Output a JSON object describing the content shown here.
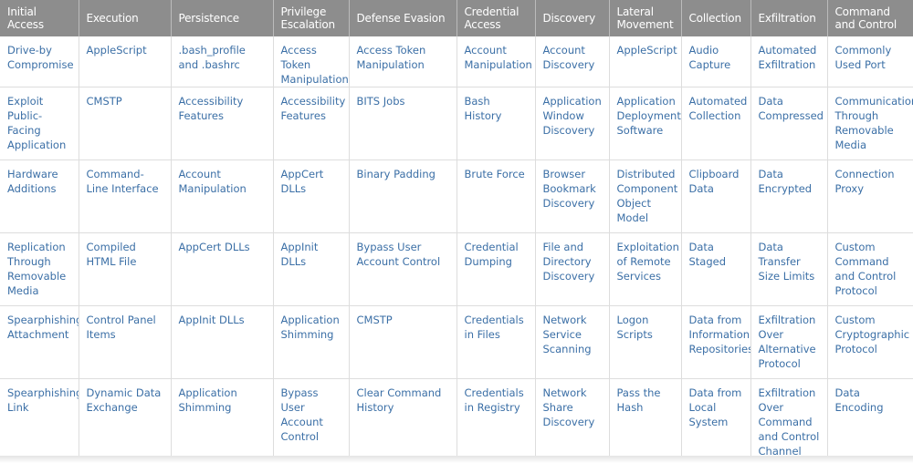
{
  "table": {
    "header": [
      "Initial Access",
      "Execution",
      "Persistence",
      "Privilege Escalation",
      "Defense Evasion",
      "Credential Access",
      "Discovery",
      "Lateral Movement",
      "Collection",
      "Exfiltration",
      "Command and Control"
    ],
    "rows": [
      [
        "Drive-by Compromise",
        "AppleScript",
        ".bash_profile and .bashrc",
        "Access Token Manipulation",
        "Access Token Manipulation",
        "Account Manipulation",
        "Account Discovery",
        "AppleScript",
        "Audio Capture",
        "Automated Exfiltration",
        "Commonly Used Port"
      ],
      [
        "Exploit Public-Facing Application",
        "CMSTP",
        "Accessibility Features",
        "Accessibility Features",
        "BITS Jobs",
        "Bash History",
        "Application Window Discovery",
        "Application Deployment Software",
        "Automated Collection",
        "Data Compressed",
        "Communication Through Removable Media"
      ],
      [
        "Hardware Additions",
        "Command-Line Interface",
        "Account Manipulation",
        "AppCert DLLs",
        "Binary Padding",
        "Brute Force",
        "Browser Bookmark Discovery",
        "Distributed Component Object Model",
        "Clipboard Data",
        "Data Encrypted",
        "Connection Proxy"
      ],
      [
        "Replication Through Removable Media",
        "Compiled HTML File",
        "AppCert DLLs",
        "AppInit DLLs",
        "Bypass User Account Control",
        "Credential Dumping",
        "File and Directory Discovery",
        "Exploitation of Remote Services",
        "Data Staged",
        "Data Transfer Size Limits",
        "Custom Command and Control Protocol"
      ],
      [
        "Spearphishing Attachment",
        "Control Panel Items",
        "AppInit DLLs",
        "Application Shimming",
        "CMSTP",
        "Credentials in Files",
        "Network Service Scanning",
        "Logon Scripts",
        "Data from Information Repositories",
        "Exfiltration Over Alternative Protocol",
        "Custom Cryptographic Protocol"
      ],
      [
        "Spearphishing Link",
        "Dynamic Data Exchange",
        "Application Shimming",
        "Bypass User Account Control",
        "Clear Command History",
        "Credentials in Registry",
        "Network Share Discovery",
        "Pass the Hash",
        "Data from Local System",
        "Exfiltration Over Command and Control Channel",
        "Data Encoding"
      ]
    ]
  }
}
